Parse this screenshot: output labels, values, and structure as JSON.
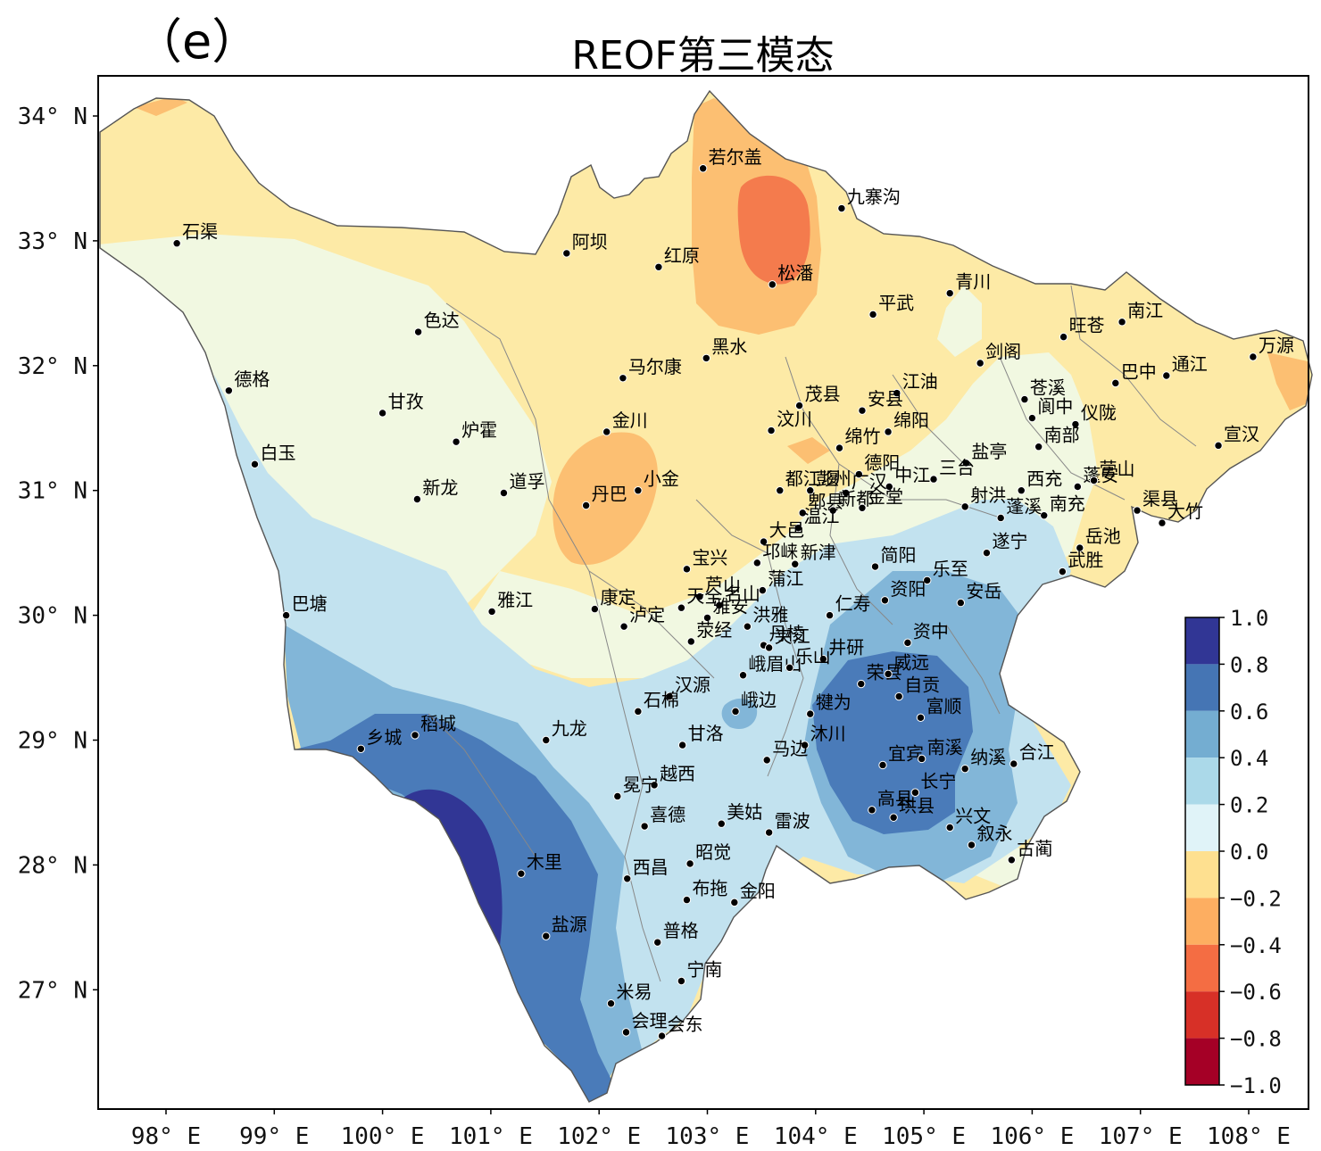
{
  "panel_label": "（e）",
  "title": "REOF第三模态",
  "axes": {
    "lat_ticks": [
      "34° N",
      "33° N",
      "32° N",
      "31° N",
      "30° N",
      "29° N",
      "28° N",
      "27° N"
    ],
    "lon_ticks": [
      "98° E",
      "99° E",
      "100° E",
      "101° E",
      "102° E",
      "103° E",
      "104° E",
      "105° E",
      "106° E",
      "107° E",
      "108° E"
    ],
    "lon_range": [
      97.3,
      108.5
    ],
    "lat_range": [
      26.05,
      34.3
    ]
  },
  "colorbar": {
    "ticks": [
      "1.0",
      "0.8",
      "0.6",
      "0.4",
      "0.2",
      "0.0",
      "−0.2",
      "−0.4",
      "−0.6",
      "−0.8",
      "−1.0"
    ],
    "colors": [
      "#313695",
      "#4575b4",
      "#74add1",
      "#abd9e9",
      "#e0f3f8",
      "#ffffbf",
      "#fee090",
      "#fdae61",
      "#f46d43",
      "#d73027",
      "#a50026"
    ]
  },
  "field_colors": {
    "pos_0_2": "#f1f8e1",
    "pos_2_4": "#c2e2ef",
    "pos_4_6": "#82b6d8",
    "pos_6_8": "#4a7bb9",
    "pos_8_10": "#313695",
    "neg_0_2": "#fdeaa6",
    "neg_2_4": "#fcbf72",
    "neg_4_6": "#f47b4d"
  },
  "stations": [
    {
      "name": "若尔盖",
      "lon": 102.96,
      "lat": 33.58
    },
    {
      "name": "九寨沟",
      "lon": 104.24,
      "lat": 33.26
    },
    {
      "name": "石渠",
      "lon": 98.1,
      "lat": 32.98
    },
    {
      "name": "阿坝",
      "lon": 101.7,
      "lat": 32.9
    },
    {
      "name": "红原",
      "lon": 102.55,
      "lat": 32.79
    },
    {
      "name": "松潘",
      "lon": 103.6,
      "lat": 32.65
    },
    {
      "name": "青川",
      "lon": 105.24,
      "lat": 32.58
    },
    {
      "name": "平武",
      "lon": 104.53,
      "lat": 32.41
    },
    {
      "name": "南江",
      "lon": 106.83,
      "lat": 32.35
    },
    {
      "name": "色达",
      "lon": 100.33,
      "lat": 32.27
    },
    {
      "name": "旺苍",
      "lon": 106.29,
      "lat": 32.23
    },
    {
      "name": "万源",
      "lon": 108.04,
      "lat": 32.07
    },
    {
      "name": "黑水",
      "lon": 102.99,
      "lat": 32.06
    },
    {
      "name": "剑阁",
      "lon": 105.52,
      "lat": 32.02
    },
    {
      "name": "通江",
      "lon": 107.24,
      "lat": 31.92
    },
    {
      "name": "马尔康",
      "lon": 102.22,
      "lat": 31.9
    },
    {
      "name": "巴中",
      "lon": 106.77,
      "lat": 31.86
    },
    {
      "name": "德格",
      "lon": 98.58,
      "lat": 31.8
    },
    {
      "name": "江油",
      "lon": 104.75,
      "lat": 31.78
    },
    {
      "name": "苍溪",
      "lon": 105.93,
      "lat": 31.73
    },
    {
      "name": "茂县",
      "lon": 103.85,
      "lat": 31.68
    },
    {
      "name": "安县",
      "lon": 104.43,
      "lat": 31.64
    },
    {
      "name": "甘孜",
      "lon": 100.0,
      "lat": 31.62
    },
    {
      "name": "阆中",
      "lon": 106.0,
      "lat": 31.58
    },
    {
      "name": "仪陇",
      "lon": 106.4,
      "lat": 31.53
    },
    {
      "name": "汶川",
      "lon": 103.59,
      "lat": 31.48
    },
    {
      "name": "绵阳",
      "lon": 104.67,
      "lat": 31.47
    },
    {
      "name": "金川",
      "lon": 102.07,
      "lat": 31.47
    },
    {
      "name": "炉霍",
      "lon": 100.68,
      "lat": 31.39
    },
    {
      "name": "宣汉",
      "lon": 107.72,
      "lat": 31.36
    },
    {
      "name": "南部",
      "lon": 106.06,
      "lat": 31.35
    },
    {
      "name": "绵竹",
      "lon": 104.22,
      "lat": 31.34
    },
    {
      "name": "盐亭",
      "lon": 105.39,
      "lat": 31.22
    },
    {
      "name": "白玉",
      "lon": 98.82,
      "lat": 31.21
    },
    {
      "name": "德阳",
      "lon": 104.4,
      "lat": 31.13
    },
    {
      "name": "中江",
      "lon": 104.68,
      "lat": 31.03
    },
    {
      "name": "三台",
      "lon": 105.09,
      "lat": 31.09
    },
    {
      "name": "西充",
      "lon": 105.9,
      "lat": 31.0
    },
    {
      "name": "蓬安",
      "lon": 106.42,
      "lat": 31.03
    },
    {
      "name": "营山",
      "lon": 106.57,
      "lat": 31.08
    },
    {
      "name": "广汉",
      "lon": 104.28,
      "lat": 30.98
    },
    {
      "name": "都江堰",
      "lon": 103.67,
      "lat": 31.0
    },
    {
      "name": "彭州",
      "lon": 103.95,
      "lat": 31.0
    },
    {
      "name": "小金",
      "lon": 102.36,
      "lat": 31.0
    },
    {
      "name": "道孚",
      "lon": 101.12,
      "lat": 30.98
    },
    {
      "name": "郫县",
      "lon": 103.88,
      "lat": 30.82
    },
    {
      "name": "新都",
      "lon": 104.16,
      "lat": 30.84
    },
    {
      "name": "金堂",
      "lon": 104.43,
      "lat": 30.86
    },
    {
      "name": "新龙",
      "lon": 100.32,
      "lat": 30.93
    },
    {
      "name": "丹巴",
      "lon": 101.88,
      "lat": 30.88
    },
    {
      "name": "射洪",
      "lon": 105.38,
      "lat": 30.87
    },
    {
      "name": "南充",
      "lon": 106.11,
      "lat": 30.8
    },
    {
      "name": "温江",
      "lon": 103.84,
      "lat": 30.7
    },
    {
      "name": "蓬溪",
      "lon": 105.71,
      "lat": 30.78
    },
    {
      "name": "渠县",
      "lon": 106.97,
      "lat": 30.84
    },
    {
      "name": "大竹",
      "lon": 107.2,
      "lat": 30.74
    },
    {
      "name": "大邑",
      "lon": 103.52,
      "lat": 30.59
    },
    {
      "name": "岳池",
      "lon": 106.44,
      "lat": 30.54
    },
    {
      "name": "新津",
      "lon": 103.81,
      "lat": 30.41
    },
    {
      "name": "遂宁",
      "lon": 105.58,
      "lat": 30.5
    },
    {
      "name": "宝兴",
      "lon": 102.81,
      "lat": 30.37
    },
    {
      "name": "简阳",
      "lon": 104.55,
      "lat": 30.39
    },
    {
      "name": "邛崃",
      "lon": 103.46,
      "lat": 30.42
    },
    {
      "name": "武胜",
      "lon": 106.28,
      "lat": 30.35
    },
    {
      "name": "芦山",
      "lon": 102.93,
      "lat": 30.15
    },
    {
      "name": "蒲江",
      "lon": 103.51,
      "lat": 30.2
    },
    {
      "name": "乐至",
      "lon": 105.03,
      "lat": 30.28
    },
    {
      "name": "天全",
      "lon": 102.76,
      "lat": 30.06
    },
    {
      "name": "名山",
      "lon": 103.11,
      "lat": 30.08
    },
    {
      "name": "雅安",
      "lon": 103.0,
      "lat": 29.98
    },
    {
      "name": "安岳",
      "lon": 105.34,
      "lat": 30.1
    },
    {
      "name": "巴塘",
      "lon": 99.11,
      "lat": 30.0
    },
    {
      "name": "雅江",
      "lon": 101.01,
      "lat": 30.03
    },
    {
      "name": "康定",
      "lon": 101.96,
      "lat": 30.05
    },
    {
      "name": "洪雅",
      "lon": 103.37,
      "lat": 29.91
    },
    {
      "name": "仁寿",
      "lon": 104.13,
      "lat": 30.0
    },
    {
      "name": "资阳",
      "lon": 104.64,
      "lat": 30.12
    },
    {
      "name": "泸定",
      "lon": 102.23,
      "lat": 29.91
    },
    {
      "name": "荥经",
      "lon": 102.85,
      "lat": 29.79
    },
    {
      "name": "资中",
      "lon": 104.85,
      "lat": 29.78
    },
    {
      "name": "丹棱",
      "lon": 103.52,
      "lat": 29.76
    },
    {
      "name": "夹江",
      "lon": 103.57,
      "lat": 29.74
    },
    {
      "name": "井研",
      "lon": 104.07,
      "lat": 29.65
    },
    {
      "name": "峨眉山",
      "lon": 103.33,
      "lat": 29.52
    },
    {
      "name": "乐山",
      "lon": 103.76,
      "lat": 29.58
    },
    {
      "name": "荣县",
      "lon": 104.42,
      "lat": 29.45
    },
    {
      "name": "威远",
      "lon": 104.67,
      "lat": 29.53
    },
    {
      "name": "汉源",
      "lon": 102.65,
      "lat": 29.35
    },
    {
      "name": "自贡",
      "lon": 104.77,
      "lat": 29.35
    },
    {
      "name": "石棉",
      "lon": 102.36,
      "lat": 29.23
    },
    {
      "name": "峨边",
      "lon": 103.26,
      "lat": 29.23
    },
    {
      "name": "犍为",
      "lon": 103.95,
      "lat": 29.21
    },
    {
      "name": "富顺",
      "lon": 104.97,
      "lat": 29.18
    },
    {
      "name": "稻城",
      "lon": 100.3,
      "lat": 29.04
    },
    {
      "name": "九龙",
      "lon": 101.51,
      "lat": 29.0
    },
    {
      "name": "甘洛",
      "lon": 102.77,
      "lat": 28.96
    },
    {
      "name": "沐川",
      "lon": 103.9,
      "lat": 28.96
    },
    {
      "name": "乡城",
      "lon": 99.8,
      "lat": 28.93
    },
    {
      "name": "马边",
      "lon": 103.55,
      "lat": 28.84
    },
    {
      "name": "宜宾",
      "lon": 104.62,
      "lat": 28.8
    },
    {
      "name": "南溪",
      "lon": 104.98,
      "lat": 28.85
    },
    {
      "name": "合江",
      "lon": 105.83,
      "lat": 28.81
    },
    {
      "name": "纳溪",
      "lon": 105.38,
      "lat": 28.77
    },
    {
      "name": "越西",
      "lon": 102.51,
      "lat": 28.64
    },
    {
      "name": "长宁",
      "lon": 104.92,
      "lat": 28.58
    },
    {
      "name": "冕宁",
      "lon": 102.17,
      "lat": 28.55
    },
    {
      "name": "高县",
      "lon": 104.52,
      "lat": 28.44
    },
    {
      "name": "珙县",
      "lon": 104.72,
      "lat": 28.38
    },
    {
      "name": "兴文",
      "lon": 105.24,
      "lat": 28.3
    },
    {
      "name": "美姑",
      "lon": 103.13,
      "lat": 28.33
    },
    {
      "name": "喜德",
      "lon": 102.42,
      "lat": 28.31
    },
    {
      "name": "雷波",
      "lon": 103.57,
      "lat": 28.26
    },
    {
      "name": "叙永",
      "lon": 105.44,
      "lat": 28.16
    },
    {
      "name": "古蔺",
      "lon": 105.81,
      "lat": 28.04
    },
    {
      "name": "昭觉",
      "lon": 102.84,
      "lat": 28.01
    },
    {
      "name": "木里",
      "lon": 101.28,
      "lat": 27.93
    },
    {
      "name": "西昌",
      "lon": 102.26,
      "lat": 27.89
    },
    {
      "name": "布拖",
      "lon": 102.81,
      "lat": 27.72
    },
    {
      "name": "金阳",
      "lon": 103.25,
      "lat": 27.7
    },
    {
      "name": "盐源",
      "lon": 101.51,
      "lat": 27.43
    },
    {
      "name": "普格",
      "lon": 102.54,
      "lat": 27.38
    },
    {
      "name": "宁南",
      "lon": 102.76,
      "lat": 27.07
    },
    {
      "name": "米易",
      "lon": 102.11,
      "lat": 26.89
    },
    {
      "name": "会理",
      "lon": 102.25,
      "lat": 26.66
    },
    {
      "name": "会东",
      "lon": 102.58,
      "lat": 26.63
    }
  ]
}
